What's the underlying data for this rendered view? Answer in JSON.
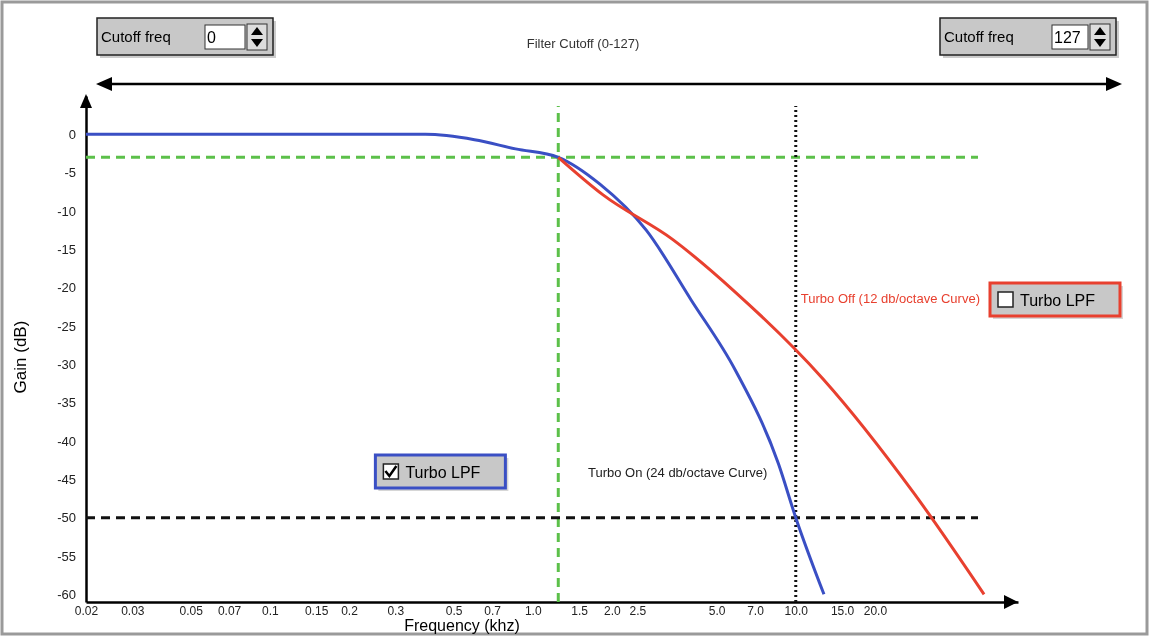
{
  "chart_data": {
    "type": "line",
    "title": "Filter Cutoff (0-127)",
    "xlabel": "Frequency (khz)",
    "ylabel": "Gain (dB)",
    "annotations": [
      "Cutoff freq",
      "0",
      "Cutoff freq",
      "127",
      "Turbo LPF",
      "Turbo LPF"
    ],
    "log": "x",
    "xlim": [
      0.02,
      70
    ],
    "ylim": [
      -61,
      5
    ],
    "xticks": [
      0.02,
      0.03,
      0.05,
      0.07,
      0.1,
      0.15,
      0.2,
      0.3,
      0.5,
      0.7,
      {
        "value": 1,
        "label": "1.0"
      },
      1.5,
      {
        "value": 2,
        "label": "2.0"
      },
      2.5,
      {
        "value": 5,
        "label": "5.0"
      },
      {
        "value": 7,
        "label": "7.0"
      },
      {
        "value": 10,
        "label": "10.0"
      },
      {
        "value": 15,
        "label": "15.0"
      },
      {
        "value": 20,
        "label": "20.0"
      }
    ],
    "yticks": [
      0,
      -5,
      -10,
      -15,
      -20,
      -25,
      -30,
      -35,
      -40,
      -45,
      -50,
      -55,
      -60
    ],
    "grid": false,
    "legend": false,
    "marker": "none",
    "line_style": "solid",
    "ref_lines": [
      {
        "axis": "x",
        "value": 1.25,
        "color": "#5cc04a",
        "line_style": "dashed"
      },
      {
        "axis": "y",
        "value": -3,
        "color": "#5cc04a",
        "line_style": "dashed"
      },
      {
        "axis": "y",
        "value": -50,
        "color": "#111111",
        "line_style": "dashed"
      },
      {
        "axis": "x",
        "value": 10,
        "color": "#111111",
        "line_style": "dotted"
      }
    ],
    "series": [
      {
        "name": "Turbo On (24 db/octave Curve)",
        "color": "#3a4fc4",
        "x": [
          0.02,
          0.39,
          0.6,
          0.86,
          1.25,
          1.8,
          2.7,
          4.0,
          5.9,
          8.6,
          10,
          12.8
        ],
        "values": [
          0,
          0,
          -0.7,
          -1.9,
          -3,
          -6.5,
          -12.5,
          -21.6,
          -30.8,
          -43,
          -50,
          -60
        ]
      },
      {
        "name": "Turbo Off (12 db/octave Curve)",
        "color": "#e8402f",
        "x": [
          1.25,
          1.85,
          3.4,
          5.9,
          12.7,
          28,
          52
        ],
        "values": [
          -3,
          -7.9,
          -13.7,
          -20.6,
          -31.9,
          -46.7,
          -60
        ]
      }
    ]
  }
}
